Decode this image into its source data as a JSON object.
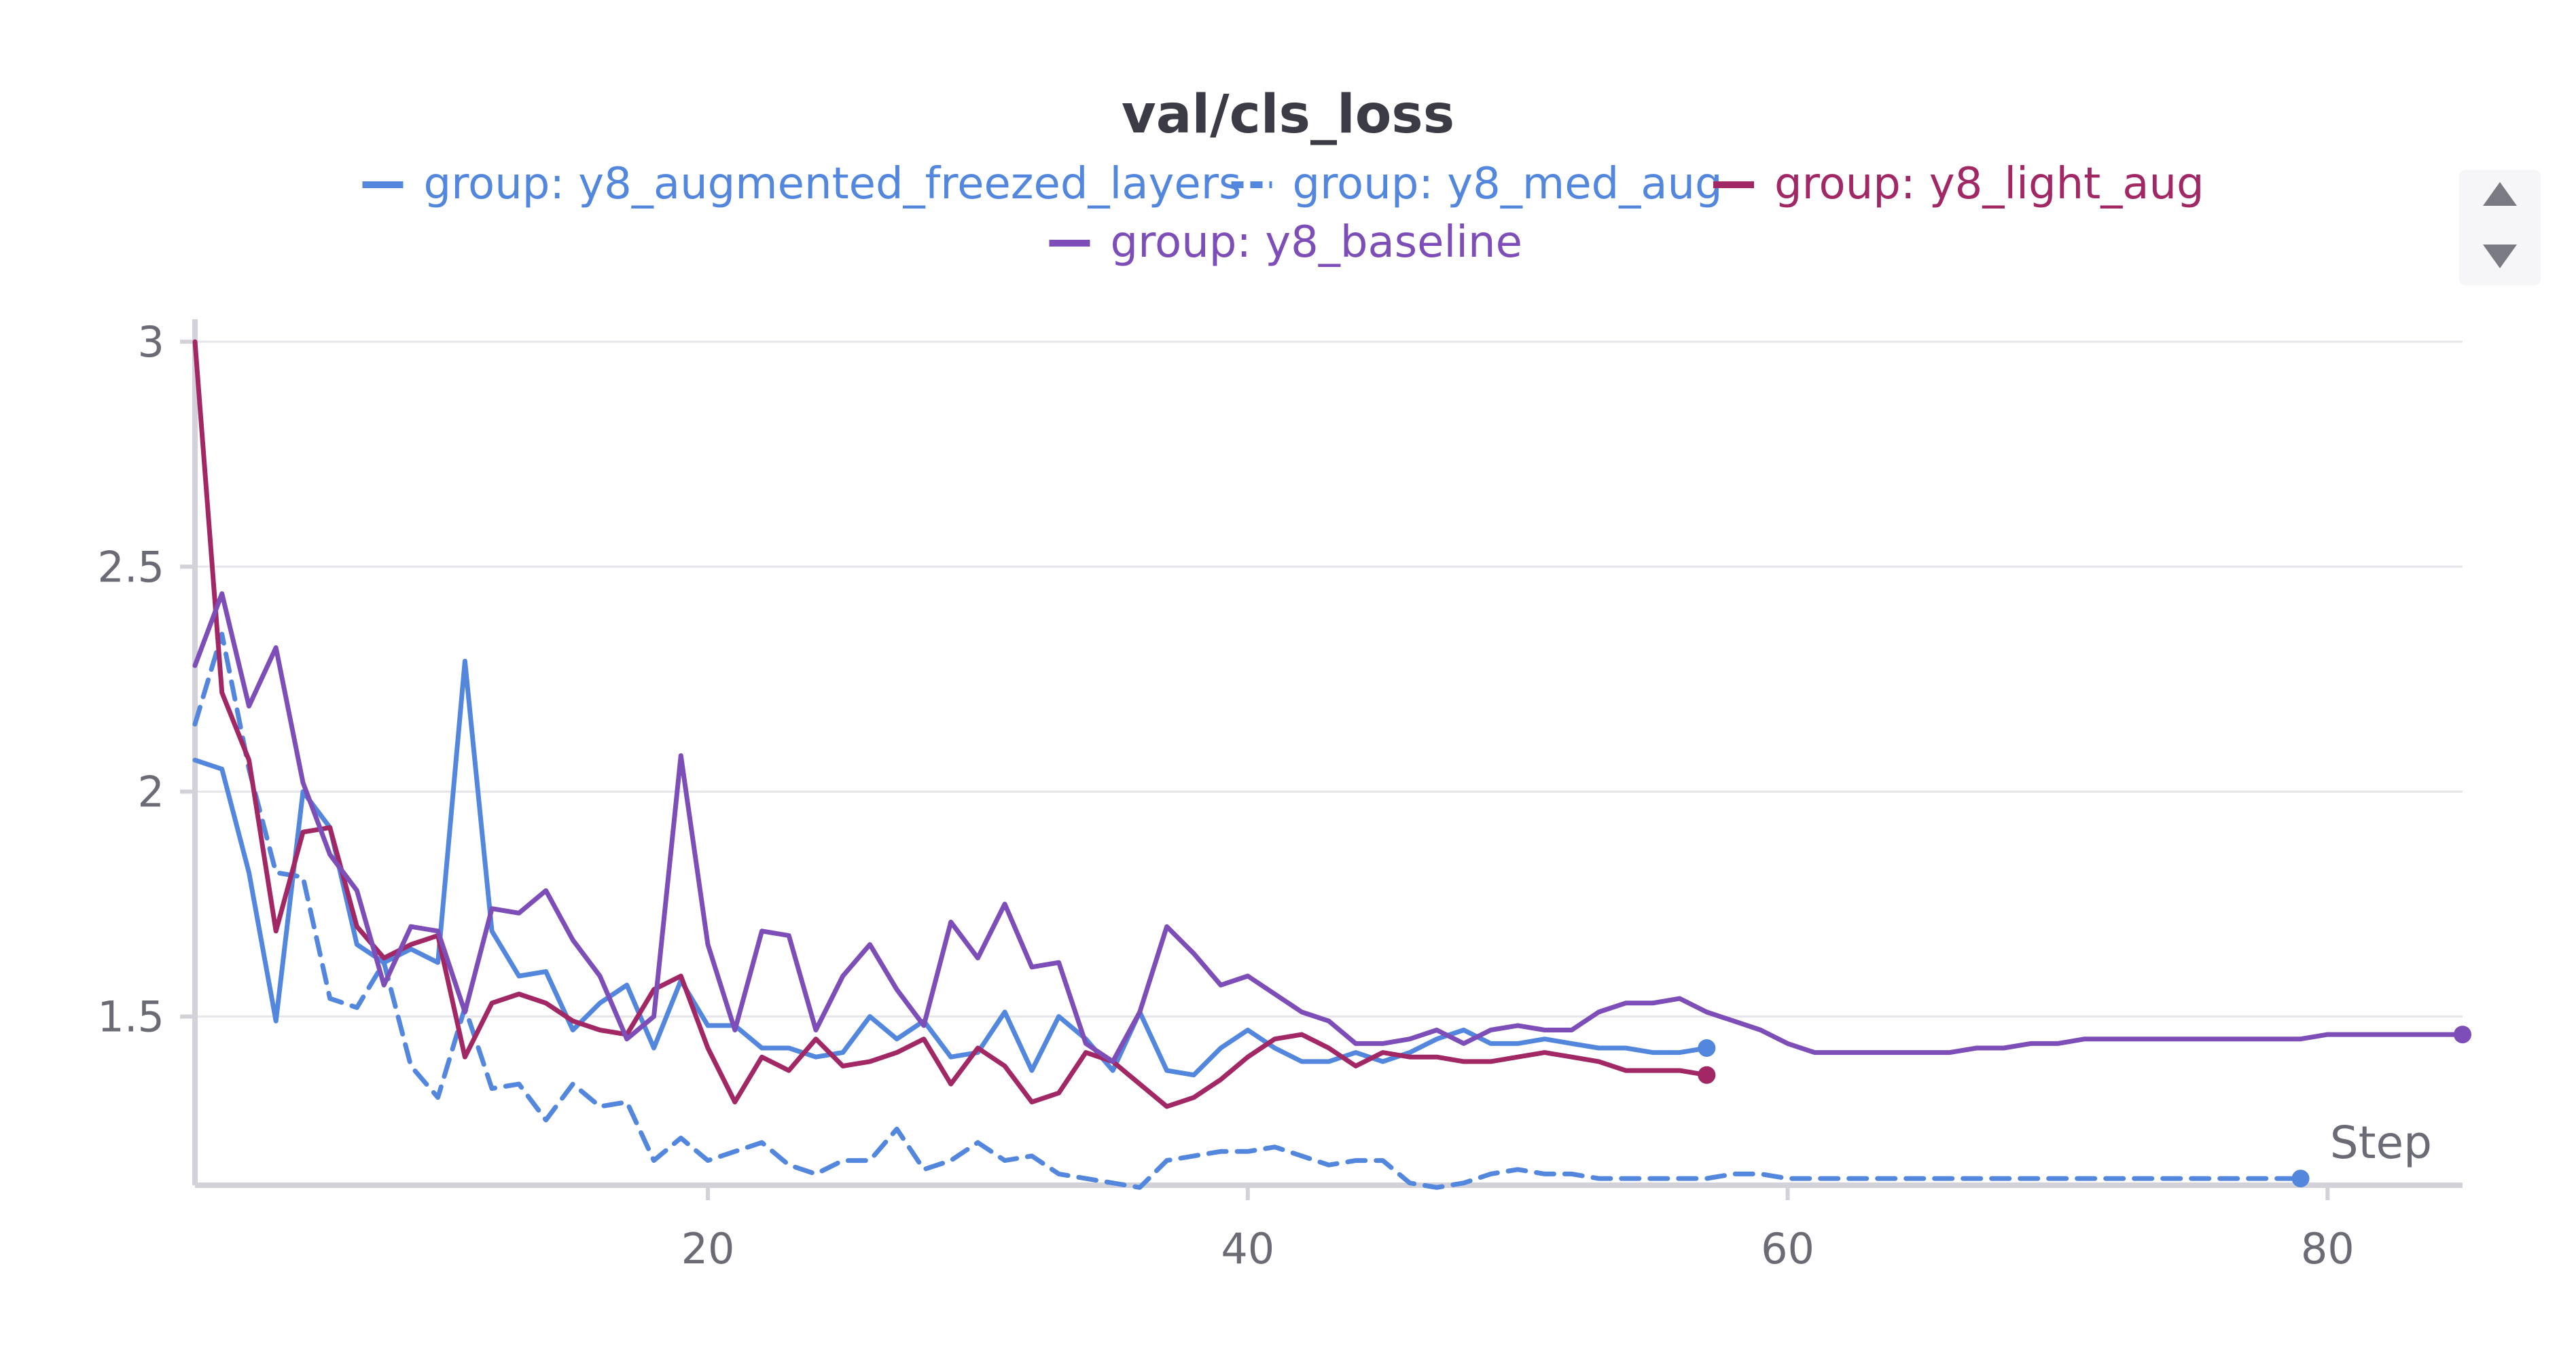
{
  "chart_data": {
    "type": "line",
    "title": "val/cls_loss",
    "xlabel": "Step",
    "ylabel": "",
    "xlim": [
      1,
      85
    ],
    "ylim": [
      1.125,
      3.05
    ],
    "x_ticks": [
      20,
      40,
      60,
      80
    ],
    "y_ticks": [
      1.5,
      2,
      2.5,
      3
    ],
    "x_tick_labels": [
      "20",
      "40",
      "60",
      "80"
    ],
    "y_tick_labels": [
      "1.5",
      "2",
      "2.5",
      "3"
    ],
    "grid": true,
    "legend_position": "top-center",
    "legend_scroll": [
      "scroll-up",
      "scroll-down"
    ],
    "series": [
      {
        "name": "group: y8_augmented_freezed_layers",
        "color": "#5387dd",
        "dash": false,
        "x": [
          1,
          2,
          3,
          4,
          5,
          6,
          7,
          8,
          9,
          10,
          11,
          12,
          13,
          14,
          15,
          16,
          17,
          18,
          19,
          20,
          21,
          22,
          23,
          24,
          25,
          26,
          27,
          28,
          29,
          30,
          31,
          32,
          33,
          34,
          35,
          36,
          37,
          38,
          39,
          40,
          41,
          42,
          43,
          44,
          45,
          46,
          47,
          48,
          49,
          50,
          51,
          52,
          53,
          54,
          55,
          56,
          57
        ],
        "y": [
          2.07,
          2.05,
          1.82,
          1.49,
          2.0,
          1.92,
          1.66,
          1.62,
          1.65,
          1.62,
          2.29,
          1.69,
          1.59,
          1.6,
          1.47,
          1.53,
          1.57,
          1.43,
          1.58,
          1.48,
          1.48,
          1.43,
          1.43,
          1.41,
          1.42,
          1.5,
          1.45,
          1.49,
          1.41,
          1.42,
          1.51,
          1.38,
          1.5,
          1.45,
          1.38,
          1.51,
          1.38,
          1.37,
          1.43,
          1.47,
          1.43,
          1.4,
          1.4,
          1.42,
          1.4,
          1.42,
          1.45,
          1.47,
          1.44,
          1.44,
          1.45,
          1.44,
          1.43,
          1.43,
          1.42,
          1.42,
          1.43
        ]
      },
      {
        "name": "group: y8_med_aug",
        "color": "#5387dd",
        "dash": true,
        "x": [
          1,
          2,
          3,
          4,
          5,
          6,
          7,
          8,
          9,
          10,
          11,
          12,
          13,
          14,
          15,
          16,
          17,
          18,
          19,
          20,
          21,
          22,
          23,
          24,
          25,
          26,
          27,
          28,
          29,
          30,
          31,
          32,
          33,
          34,
          35,
          36,
          37,
          38,
          39,
          40,
          41,
          42,
          43,
          44,
          45,
          46,
          47,
          48,
          49,
          50,
          51,
          52,
          53,
          54,
          55,
          56,
          57,
          58,
          59,
          60,
          61,
          62,
          63,
          64,
          65,
          66,
          67,
          68,
          69,
          70,
          71,
          72,
          73,
          74,
          75,
          76,
          77,
          78,
          79
        ],
        "y": [
          2.15,
          2.35,
          2.05,
          1.82,
          1.81,
          1.54,
          1.52,
          1.62,
          1.39,
          1.32,
          1.52,
          1.34,
          1.35,
          1.27,
          1.35,
          1.3,
          1.31,
          1.18,
          1.23,
          1.18,
          1.2,
          1.22,
          1.17,
          1.15,
          1.18,
          1.18,
          1.25,
          1.16,
          1.18,
          1.22,
          1.18,
          1.19,
          1.15,
          1.14,
          1.13,
          1.12,
          1.18,
          1.19,
          1.2,
          1.2,
          1.21,
          1.19,
          1.17,
          1.18,
          1.18,
          1.13,
          1.12,
          1.13,
          1.15,
          1.16,
          1.15,
          1.15,
          1.14,
          1.14,
          1.14,
          1.14,
          1.14,
          1.15,
          1.15,
          1.14,
          1.14,
          1.14,
          1.14,
          1.14,
          1.14,
          1.14,
          1.14,
          1.14,
          1.14,
          1.14,
          1.14,
          1.14,
          1.14,
          1.14,
          1.14,
          1.14,
          1.14,
          1.14,
          1.14
        ]
      },
      {
        "name": "group: y8_light_aug",
        "color": "#a12864",
        "dash": false,
        "x": [
          1,
          2,
          3,
          4,
          5,
          6,
          7,
          8,
          9,
          10,
          11,
          12,
          13,
          14,
          15,
          16,
          17,
          18,
          19,
          20,
          21,
          22,
          23,
          24,
          25,
          26,
          27,
          28,
          29,
          30,
          31,
          32,
          33,
          34,
          35,
          36,
          37,
          38,
          39,
          40,
          41,
          42,
          43,
          44,
          45,
          46,
          47,
          48,
          49,
          50,
          51,
          52,
          53,
          54,
          55,
          56,
          57
        ],
        "y": [
          3.0,
          2.22,
          2.07,
          1.69,
          1.91,
          1.92,
          1.7,
          1.63,
          1.66,
          1.68,
          1.41,
          1.53,
          1.55,
          1.53,
          1.49,
          1.47,
          1.46,
          1.56,
          1.59,
          1.43,
          1.31,
          1.41,
          1.38,
          1.45,
          1.39,
          1.4,
          1.42,
          1.45,
          1.35,
          1.43,
          1.39,
          1.31,
          1.33,
          1.42,
          1.4,
          1.35,
          1.3,
          1.32,
          1.36,
          1.41,
          1.45,
          1.46,
          1.43,
          1.39,
          1.42,
          1.41,
          1.41,
          1.4,
          1.4,
          1.41,
          1.42,
          1.41,
          1.4,
          1.38,
          1.38,
          1.38,
          1.37
        ]
      },
      {
        "name": "group: y8_baseline",
        "color": "#7d4db8",
        "dash": false,
        "x": [
          1,
          2,
          3,
          4,
          5,
          6,
          7,
          8,
          9,
          10,
          11,
          12,
          13,
          14,
          15,
          16,
          17,
          18,
          19,
          20,
          21,
          22,
          23,
          24,
          25,
          26,
          27,
          28,
          29,
          30,
          31,
          32,
          33,
          34,
          35,
          36,
          37,
          38,
          39,
          40,
          41,
          42,
          43,
          44,
          45,
          46,
          47,
          48,
          49,
          50,
          51,
          52,
          53,
          54,
          55,
          56,
          57,
          58,
          59,
          60,
          61,
          62,
          63,
          64,
          65,
          66,
          67,
          68,
          69,
          70,
          71,
          72,
          73,
          74,
          75,
          76,
          77,
          78,
          79,
          80,
          81,
          82,
          83,
          84,
          85
        ],
        "y": [
          2.28,
          2.44,
          2.19,
          2.32,
          2.02,
          1.86,
          1.78,
          1.57,
          1.7,
          1.69,
          1.51,
          1.74,
          1.73,
          1.78,
          1.67,
          1.59,
          1.45,
          1.5,
          2.08,
          1.66,
          1.47,
          1.69,
          1.68,
          1.47,
          1.59,
          1.66,
          1.56,
          1.48,
          1.71,
          1.63,
          1.75,
          1.61,
          1.62,
          1.44,
          1.4,
          1.51,
          1.7,
          1.64,
          1.57,
          1.59,
          1.55,
          1.51,
          1.49,
          1.44,
          1.44,
          1.45,
          1.47,
          1.44,
          1.47,
          1.48,
          1.47,
          1.47,
          1.51,
          1.53,
          1.53,
          1.54,
          1.51,
          1.49,
          1.47,
          1.44,
          1.42,
          1.42,
          1.42,
          1.42,
          1.42,
          1.42,
          1.43,
          1.43,
          1.44,
          1.44,
          1.45,
          1.45,
          1.45,
          1.45,
          1.45,
          1.45,
          1.45,
          1.45,
          1.45,
          1.46,
          1.46,
          1.46,
          1.46,
          1.46,
          1.46
        ]
      }
    ]
  }
}
